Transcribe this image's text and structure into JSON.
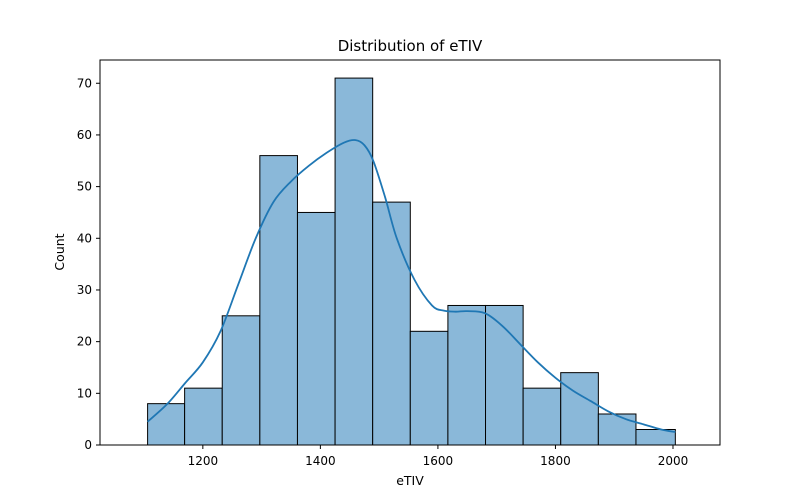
{
  "chart_data": {
    "type": "bar",
    "title": "Distribution of eTIV",
    "xlabel": "eTIV",
    "ylabel": "Count",
    "xlim": [
      1025,
      2080
    ],
    "ylim": [
      0,
      74.5
    ],
    "xticks": [
      1200,
      1400,
      1600,
      1800,
      2000
    ],
    "yticks": [
      0,
      10,
      20,
      30,
      40,
      50,
      60,
      70
    ],
    "bin_edges": [
      1106,
      1169,
      1233,
      1297,
      1361,
      1425,
      1489,
      1553,
      1617,
      1681,
      1745,
      1809,
      1873,
      1937,
      2004
    ],
    "counts": [
      8,
      11,
      25,
      56,
      45,
      71,
      47,
      22,
      27,
      27,
      11,
      14,
      6,
      3
    ],
    "kde": {
      "x": [
        1106,
        1140,
        1170,
        1200,
        1230,
        1260,
        1290,
        1320,
        1350,
        1380,
        1410,
        1440,
        1460,
        1475,
        1490,
        1510,
        1530,
        1560,
        1590,
        1610,
        1630,
        1650,
        1680,
        1710,
        1740,
        1770,
        1800,
        1830,
        1860,
        1890,
        1920,
        1950,
        1980,
        2004
      ],
      "y": [
        4.5,
        8,
        12,
        16,
        22,
        31,
        40,
        47,
        51,
        54,
        56.5,
        58.5,
        59,
        58,
        55,
        48,
        40,
        32,
        27,
        26,
        25.8,
        25.9,
        25.5,
        23,
        19.5,
        16,
        13,
        10.5,
        8.5,
        6.5,
        5,
        4,
        3,
        2.5
      ]
    },
    "colors": {
      "bar_fill": "#8ab8d9",
      "bar_edge": "#000000",
      "kde_line": "#1f77b4"
    },
    "grid": false,
    "legend": "none"
  }
}
